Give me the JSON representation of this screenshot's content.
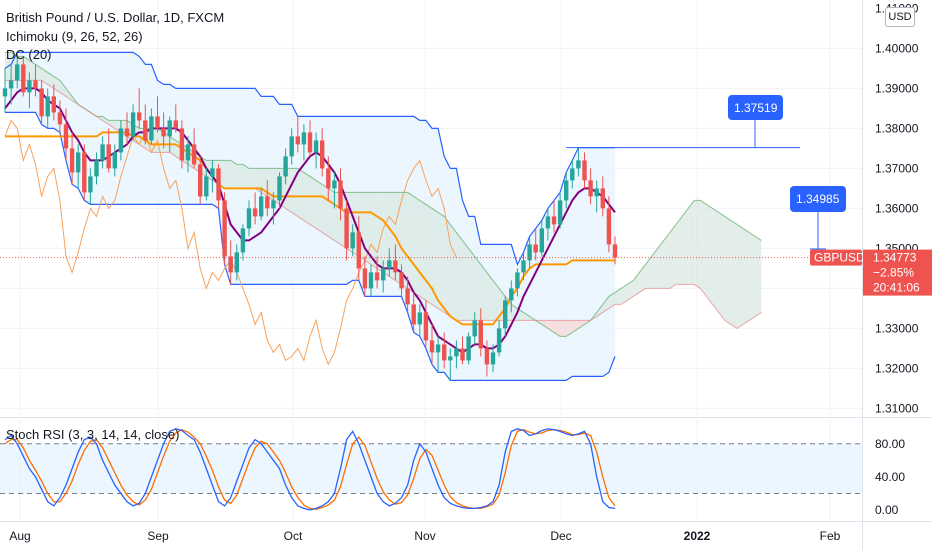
{
  "header": {
    "title": "British Pound / U.S. Dollar, 1D, FXCM",
    "indicator_ichimoku": "Ichimoku (9, 26, 52, 26)",
    "indicator_dc": "DC (20)",
    "indicator_stoch": "Stoch RSI (3, 3, 14, 14, close)",
    "currency": "USD"
  },
  "colors": {
    "up": "#26a69a",
    "down": "#ef5350",
    "conversion": "#800080",
    "base": "#ff9800",
    "lagging": "#f7a25a",
    "dc_band": "#2962ff",
    "dc_fill": "#e3f2fd",
    "kumo_bear": "#f8d7d7",
    "kumo_bull": "#d9e8e3",
    "stoch_k": "#2962ff",
    "stoch_d": "#ff6d00",
    "callout": "#2962ff"
  },
  "price_axis": {
    "ticks": [
      "1.40000",
      "1.39000",
      "1.38000",
      "1.37000",
      "1.36000",
      "1.35000",
      "1.34000",
      "1.33000",
      "1.32000",
      "1.31000"
    ],
    "top_partial": "1.41000"
  },
  "time_axis": {
    "labels": [
      "Aug",
      "Sep",
      "Oct",
      "Nov",
      "Dec",
      "2022",
      "Feb"
    ]
  },
  "price_tag": {
    "symbol": "GBPUSD",
    "price": "1.34773",
    "change": "−2.85%",
    "countdown": "20:41:06"
  },
  "callouts": [
    {
      "label": "1.37519"
    },
    {
      "label": "1.34985"
    }
  ],
  "stoch_axis": {
    "ticks": [
      "80.00",
      "40.00",
      "0.00"
    ]
  },
  "chart_data": {
    "type": "candlestick",
    "title": "British Pound / U.S. Dollar, 1D, FXCM",
    "ylim": [
      1.305,
      1.412
    ],
    "x_range": [
      "2021-07-21",
      "2022-02-10"
    ],
    "candles": [
      [
        1.388,
        1.395,
        1.384,
        1.39
      ],
      [
        1.39,
        1.396,
        1.386,
        1.392
      ],
      [
        1.392,
        1.399,
        1.39,
        1.396
      ],
      [
        1.396,
        1.398,
        1.388,
        1.389
      ],
      [
        1.389,
        1.394,
        1.385,
        1.392
      ],
      [
        1.392,
        1.396,
        1.388,
        1.39
      ],
      [
        1.39,
        1.392,
        1.381,
        1.383
      ],
      [
        1.383,
        1.39,
        1.38,
        1.388
      ],
      [
        1.388,
        1.391,
        1.382,
        1.384
      ],
      [
        1.384,
        1.387,
        1.379,
        1.381
      ],
      [
        1.381,
        1.385,
        1.372,
        1.375
      ],
      [
        1.375,
        1.379,
        1.366,
        1.369
      ],
      [
        1.369,
        1.376,
        1.365,
        1.374
      ],
      [
        1.374,
        1.376,
        1.362,
        1.364
      ],
      [
        1.364,
        1.37,
        1.361,
        1.368
      ],
      [
        1.368,
        1.374,
        1.366,
        1.372
      ],
      [
        1.372,
        1.378,
        1.37,
        1.376
      ],
      [
        1.376,
        1.38,
        1.369,
        1.37
      ],
      [
        1.37,
        1.376,
        1.368,
        1.374
      ],
      [
        1.374,
        1.382,
        1.372,
        1.38
      ],
      [
        1.38,
        1.384,
        1.376,
        1.378
      ],
      [
        1.378,
        1.386,
        1.377,
        1.384
      ],
      [
        1.384,
        1.39,
        1.38,
        1.382
      ],
      [
        1.382,
        1.386,
        1.376,
        1.377
      ],
      [
        1.377,
        1.385,
        1.376,
        1.383
      ],
      [
        1.383,
        1.388,
        1.379,
        1.38
      ],
      [
        1.38,
        1.384,
        1.375,
        1.378
      ],
      [
        1.378,
        1.383,
        1.374,
        1.382
      ],
      [
        1.382,
        1.386,
        1.379,
        1.38
      ],
      [
        1.38,
        1.382,
        1.37,
        1.372
      ],
      [
        1.372,
        1.378,
        1.369,
        1.376
      ],
      [
        1.376,
        1.38,
        1.37,
        1.371
      ],
      [
        1.371,
        1.373,
        1.361,
        1.363
      ],
      [
        1.363,
        1.37,
        1.362,
        1.368
      ],
      [
        1.368,
        1.372,
        1.364,
        1.37
      ],
      [
        1.37,
        1.371,
        1.36,
        1.362
      ],
      [
        1.362,
        1.364,
        1.346,
        1.348
      ],
      [
        1.348,
        1.352,
        1.341,
        1.344
      ],
      [
        1.344,
        1.351,
        1.342,
        1.349
      ],
      [
        1.349,
        1.356,
        1.347,
        1.355
      ],
      [
        1.355,
        1.362,
        1.353,
        1.36
      ],
      [
        1.36,
        1.364,
        1.356,
        1.358
      ],
      [
        1.358,
        1.365,
        1.357,
        1.363
      ],
      [
        1.363,
        1.367,
        1.358,
        1.36
      ],
      [
        1.36,
        1.364,
        1.356,
        1.362
      ],
      [
        1.362,
        1.369,
        1.36,
        1.368
      ],
      [
        1.368,
        1.375,
        1.366,
        1.373
      ],
      [
        1.373,
        1.38,
        1.371,
        1.378
      ],
      [
        1.378,
        1.383,
        1.374,
        1.376
      ],
      [
        1.376,
        1.381,
        1.372,
        1.379
      ],
      [
        1.379,
        1.382,
        1.373,
        1.374
      ],
      [
        1.374,
        1.379,
        1.37,
        1.377
      ],
      [
        1.377,
        1.38,
        1.368,
        1.37
      ],
      [
        1.37,
        1.373,
        1.362,
        1.365
      ],
      [
        1.365,
        1.369,
        1.36,
        1.367
      ],
      [
        1.367,
        1.37,
        1.357,
        1.36
      ],
      [
        1.36,
        1.362,
        1.347,
        1.35
      ],
      [
        1.35,
        1.356,
        1.348,
        1.354
      ],
      [
        1.354,
        1.358,
        1.342,
        1.345
      ],
      [
        1.345,
        1.348,
        1.338,
        1.34
      ],
      [
        1.34,
        1.346,
        1.338,
        1.344
      ],
      [
        1.344,
        1.348,
        1.34,
        1.342
      ],
      [
        1.342,
        1.347,
        1.339,
        1.345
      ],
      [
        1.345,
        1.35,
        1.343,
        1.347
      ],
      [
        1.347,
        1.351,
        1.342,
        1.344
      ],
      [
        1.344,
        1.346,
        1.338,
        1.34
      ],
      [
        1.34,
        1.343,
        1.334,
        1.336
      ],
      [
        1.336,
        1.339,
        1.329,
        1.331
      ],
      [
        1.331,
        1.336,
        1.328,
        1.334
      ],
      [
        1.334,
        1.337,
        1.325,
        1.327
      ],
      [
        1.327,
        1.331,
        1.321,
        1.324
      ],
      [
        1.324,
        1.328,
        1.319,
        1.326
      ],
      [
        1.326,
        1.329,
        1.32,
        1.322
      ],
      [
        1.322,
        1.325,
        1.317,
        1.323
      ],
      [
        1.323,
        1.327,
        1.32,
        1.325
      ],
      [
        1.325,
        1.328,
        1.321,
        1.322
      ],
      [
        1.322,
        1.329,
        1.321,
        1.328
      ],
      [
        1.328,
        1.334,
        1.326,
        1.332
      ],
      [
        1.332,
        1.335,
        1.323,
        1.325
      ],
      [
        1.325,
        1.327,
        1.318,
        1.321
      ],
      [
        1.321,
        1.326,
        1.319,
        1.324
      ],
      [
        1.324,
        1.332,
        1.323,
        1.33
      ],
      [
        1.33,
        1.338,
        1.328,
        1.337
      ],
      [
        1.337,
        1.342,
        1.334,
        1.34
      ],
      [
        1.34,
        1.345,
        1.338,
        1.344
      ],
      [
        1.344,
        1.349,
        1.342,
        1.347
      ],
      [
        1.347,
        1.353,
        1.345,
        1.351
      ],
      [
        1.351,
        1.355,
        1.347,
        1.349
      ],
      [
        1.349,
        1.357,
        1.348,
        1.355
      ],
      [
        1.355,
        1.36,
        1.352,
        1.358
      ],
      [
        1.358,
        1.362,
        1.354,
        1.356
      ],
      [
        1.356,
        1.364,
        1.355,
        1.362
      ],
      [
        1.362,
        1.369,
        1.36,
        1.367
      ],
      [
        1.367,
        1.372,
        1.365,
        1.37
      ],
      [
        1.37,
        1.3752,
        1.368,
        1.372
      ],
      [
        1.372,
        1.374,
        1.365,
        1.367
      ],
      [
        1.367,
        1.37,
        1.361,
        1.363
      ],
      [
        1.363,
        1.367,
        1.359,
        1.365
      ],
      [
        1.365,
        1.368,
        1.358,
        1.36
      ],
      [
        1.36,
        1.363,
        1.349,
        1.351
      ],
      [
        1.351,
        1.353,
        1.346,
        1.3477
      ]
    ],
    "tenkan": [
      1.385,
      1.387,
      1.389,
      1.39,
      1.39,
      1.39,
      1.389,
      1.387,
      1.386,
      1.385,
      1.382,
      1.379,
      1.377,
      1.374,
      1.372,
      1.372,
      1.372,
      1.373,
      1.374,
      1.375,
      1.376,
      1.378,
      1.379,
      1.379,
      1.38,
      1.38,
      1.38,
      1.38,
      1.38,
      1.379,
      1.377,
      1.375,
      1.373,
      1.37,
      1.368,
      1.366,
      1.361,
      1.356,
      1.354,
      1.352,
      1.352,
      1.353,
      1.354,
      1.356,
      1.358,
      1.36,
      1.363,
      1.366,
      1.369,
      1.371,
      1.373,
      1.374,
      1.373,
      1.371,
      1.369,
      1.366,
      1.362,
      1.358,
      1.354,
      1.35,
      1.348,
      1.346,
      1.345,
      1.345,
      1.345,
      1.344,
      1.342,
      1.339,
      1.337,
      1.334,
      1.331,
      1.328,
      1.327,
      1.326,
      1.325,
      1.324,
      1.325,
      1.326,
      1.326,
      1.325,
      1.325,
      1.326,
      1.328,
      1.331,
      1.334,
      1.338,
      1.341,
      1.344,
      1.347,
      1.35,
      1.353,
      1.356,
      1.359,
      1.362,
      1.364,
      1.365,
      1.365,
      1.364,
      1.363,
      1.361,
      1.359
    ],
    "kijun": [
      1.378,
      1.378,
      1.378,
      1.378,
      1.378,
      1.378,
      1.378,
      1.378,
      1.378,
      1.378,
      1.378,
      1.378,
      1.378,
      1.378,
      1.378,
      1.378,
      1.379,
      1.379,
      1.379,
      1.379,
      1.379,
      1.378,
      1.378,
      1.377,
      1.376,
      1.376,
      1.376,
      1.376,
      1.376,
      1.375,
      1.374,
      1.373,
      1.372,
      1.37,
      1.368,
      1.366,
      1.365,
      1.365,
      1.365,
      1.365,
      1.365,
      1.365,
      1.365,
      1.364,
      1.363,
      1.363,
      1.363,
      1.363,
      1.363,
      1.363,
      1.363,
      1.363,
      1.363,
      1.362,
      1.361,
      1.36,
      1.359,
      1.359,
      1.359,
      1.359,
      1.359,
      1.358,
      1.357,
      1.355,
      1.353,
      1.35,
      1.348,
      1.346,
      1.344,
      1.342,
      1.34,
      1.337,
      1.335,
      1.333,
      1.332,
      1.331,
      1.331,
      1.331,
      1.331,
      1.331,
      1.331,
      1.333,
      1.335,
      1.338,
      1.34,
      1.343,
      1.345,
      1.346,
      1.346,
      1.346,
      1.346,
      1.346,
      1.346,
      1.347,
      1.347,
      1.347,
      1.347,
      1.347,
      1.347,
      1.347,
      1.347
    ],
    "senkou_a": [
      1.399,
      1.399,
      1.398,
      1.398,
      1.397,
      1.396,
      1.395,
      1.394,
      1.393,
      1.392,
      1.39,
      1.388,
      1.386,
      1.385,
      1.384,
      1.383,
      1.383,
      1.382,
      1.382,
      1.382,
      1.382,
      1.381,
      1.38,
      1.38,
      1.38,
      1.38,
      1.379,
      1.378,
      1.377,
      1.376,
      1.375,
      1.374,
      1.373,
      1.372,
      1.372,
      1.372,
      1.372,
      1.372,
      1.371,
      1.371,
      1.37,
      1.37,
      1.37,
      1.37,
      1.37,
      1.37,
      1.37,
      1.37,
      1.37,
      1.369,
      1.368,
      1.367,
      1.366,
      1.365,
      1.364,
      1.364,
      1.364,
      1.364,
      1.364,
      1.364,
      1.364,
      1.364,
      1.364,
      1.364,
      1.364,
      1.364,
      1.364,
      1.363,
      1.362,
      1.361,
      1.36,
      1.359,
      1.358,
      1.356,
      1.354,
      1.352,
      1.35,
      1.348,
      1.346,
      1.344,
      1.342,
      1.34,
      1.338,
      1.336,
      1.335,
      1.334,
      1.333,
      1.332,
      1.331,
      1.33,
      1.329,
      1.328,
      1.328,
      1.329,
      1.33,
      1.331,
      1.332,
      1.334,
      1.336,
      1.338,
      1.339,
      1.34,
      1.341,
      1.342,
      1.344,
      1.346,
      1.348,
      1.35,
      1.352,
      1.354,
      1.356,
      1.358,
      1.36,
      1.362,
      1.362,
      1.361,
      1.36,
      1.359,
      1.358,
      1.357,
      1.356,
      1.355,
      1.354,
      1.353,
      1.352
    ],
    "senkou_b": [
      1.392,
      1.392,
      1.392,
      1.392,
      1.392,
      1.392,
      1.392,
      1.391,
      1.39,
      1.389,
      1.388,
      1.387,
      1.386,
      1.385,
      1.384,
      1.383,
      1.382,
      1.381,
      1.38,
      1.379,
      1.378,
      1.377,
      1.376,
      1.375,
      1.374,
      1.374,
      1.374,
      1.374,
      1.373,
      1.372,
      1.371,
      1.37,
      1.369,
      1.368,
      1.367,
      1.366,
      1.365,
      1.365,
      1.365,
      1.365,
      1.365,
      1.365,
      1.364,
      1.363,
      1.362,
      1.361,
      1.36,
      1.359,
      1.358,
      1.357,
      1.356,
      1.355,
      1.354,
      1.353,
      1.352,
      1.351,
      1.35,
      1.349,
      1.348,
      1.347,
      1.346,
      1.345,
      1.344,
      1.343,
      1.342,
      1.341,
      1.34,
      1.339,
      1.338,
      1.337,
      1.336,
      1.335,
      1.334,
      1.333,
      1.332,
      1.332,
      1.332,
      1.332,
      1.332,
      1.332,
      1.332,
      1.332,
      1.332,
      1.332,
      1.332,
      1.332,
      1.332,
      1.332,
      1.332,
      1.332,
      1.332,
      1.332,
      1.332,
      1.332,
      1.332,
      1.332,
      1.332,
      1.333,
      1.334,
      1.335,
      1.336,
      1.336,
      1.337,
      1.338,
      1.339,
      1.34,
      1.34,
      1.34,
      1.34,
      1.34,
      1.341,
      1.341,
      1.341,
      1.341,
      1.34,
      1.338,
      1.336,
      1.334,
      1.332,
      1.331,
      1.33,
      1.331,
      1.332,
      1.333,
      1.334
    ],
    "stoch_k": [
      85,
      90,
      80,
      65,
      50,
      40,
      25,
      10,
      5,
      15,
      30,
      50,
      70,
      85,
      88,
      80,
      60,
      45,
      30,
      20,
      10,
      5,
      8,
      20,
      40,
      60,
      80,
      95,
      98,
      96,
      90,
      85,
      70,
      50,
      30,
      10,
      5,
      15,
      35,
      55,
      75,
      85,
      80,
      70,
      60,
      50,
      30,
      15,
      5,
      2,
      0,
      2,
      5,
      10,
      20,
      50,
      85,
      95,
      80,
      60,
      40,
      20,
      10,
      5,
      8,
      15,
      30,
      60,
      80,
      70,
      50,
      30,
      15,
      8,
      5,
      3,
      2,
      2,
      3,
      5,
      10,
      30,
      70,
      95,
      98,
      96,
      90,
      92,
      96,
      98,
      97,
      95,
      92,
      90,
      92,
      95,
      80,
      40,
      10,
      3,
      2
    ],
    "stoch_d": [
      80,
      85,
      85,
      75,
      60,
      48,
      35,
      20,
      10,
      10,
      20,
      35,
      55,
      72,
      83,
      85,
      75,
      60,
      45,
      30,
      18,
      10,
      6,
      12,
      25,
      45,
      65,
      83,
      93,
      97,
      94,
      88,
      80,
      65,
      48,
      28,
      12,
      8,
      18,
      38,
      58,
      75,
      83,
      80,
      70,
      60,
      45,
      28,
      15,
      6,
      2,
      1,
      3,
      6,
      12,
      28,
      55,
      80,
      88,
      78,
      58,
      38,
      22,
      12,
      7,
      9,
      18,
      38,
      62,
      73,
      66,
      48,
      30,
      16,
      9,
      5,
      3,
      2,
      2,
      4,
      7,
      18,
      45,
      78,
      95,
      97,
      94,
      92,
      93,
      96,
      97,
      96,
      94,
      91,
      91,
      93,
      90,
      70,
      40,
      15,
      5
    ],
    "annotations": [
      "1.37519",
      "1.34985"
    ]
  }
}
